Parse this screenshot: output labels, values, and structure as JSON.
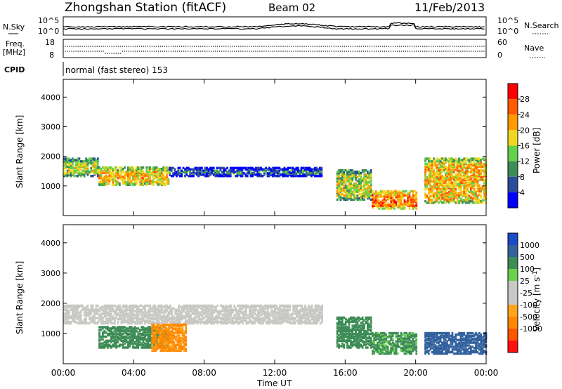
{
  "header": {
    "station": "Zhongshan Station (fitACF)",
    "beam": "Beam 02",
    "date": "11/Feb/2013"
  },
  "noise_panel": {
    "left_label": "N.Sky",
    "right_label": "N.Search",
    "left_ticks": [
      "10^5",
      "10^0"
    ],
    "right_ticks": [
      "10^5",
      "10^0"
    ]
  },
  "freq_panel": {
    "left_label_1": "Freq.",
    "left_label_2": "[MHz]",
    "left_ticks": [
      "18",
      "8"
    ],
    "right_label": "Nave",
    "right_ticks": [
      "60",
      "0"
    ],
    "freq_range": [
      8,
      18
    ],
    "nave_range": [
      0,
      60
    ]
  },
  "cpid_panel": {
    "label": "CPID",
    "text": "normal (fast stereo) 153"
  },
  "colors": {
    "power": [
      "#0000ff",
      "#2b4b9b",
      "#3e8c56",
      "#64d14c",
      "#f0d820",
      "#ff9a00",
      "#ff5a00",
      "#ff0000"
    ],
    "velocity_pos": [
      "#1a4bc8",
      "#33629e",
      "#3e8c56",
      "#6ad24e"
    ],
    "velocity_neutral": "#c8c8c4",
    "velocity_neg": [
      "#ffa51d",
      "#ff8800",
      "#ff5500",
      "#ff1010"
    ]
  },
  "chart_data": [
    {
      "type": "heatmap",
      "title": "",
      "xlabel": "",
      "ylabel": "Slant Range [km]",
      "xlim": [
        "00:00",
        "00:00"
      ],
      "ylim": [
        0,
        4600
      ],
      "yticks": [
        "1000",
        "2000",
        "3000",
        "4000"
      ],
      "colorbar": {
        "label": "Power [dB]",
        "ticks": [
          "4",
          "8",
          "12",
          "16",
          "20",
          "24",
          "28"
        ],
        "range": [
          0,
          32
        ]
      },
      "summary_bands": [
        {
          "t_start": "00:00",
          "t_end": "02:00",
          "range_km": [
            1300,
            1900
          ],
          "power_db": 16
        },
        {
          "t_start": "02:00",
          "t_end": "06:00",
          "range_km": [
            1000,
            1600
          ],
          "power_db": 20
        },
        {
          "t_start": "06:00",
          "t_end": "14:40",
          "range_km": [
            1300,
            1600
          ],
          "power_db": 8
        },
        {
          "t_start": "15:30",
          "t_end": "17:30",
          "range_km": [
            500,
            1500
          ],
          "power_db": 16
        },
        {
          "t_start": "17:30",
          "t_end": "20:00",
          "range_km": [
            200,
            800
          ],
          "power_db": 24
        },
        {
          "t_start": "20:30",
          "t_end": "24:00",
          "range_km": [
            400,
            1900
          ],
          "power_db": 20
        }
      ]
    },
    {
      "type": "heatmap",
      "title": "",
      "xlabel": "Time UT",
      "ylabel": "Slant Range [km]",
      "xlim": [
        "00:00",
        "00:00"
      ],
      "ylim": [
        0,
        4600
      ],
      "yticks": [
        "1000",
        "2000",
        "3000",
        "4000"
      ],
      "xticks": [
        "00:00",
        "04:00",
        "08:00",
        "12:00",
        "16:00",
        "20:00",
        "00:00"
      ],
      "colorbar": {
        "label": "Velocity [m s-1]",
        "ticks": [
          "1000",
          "500",
          "100",
          "25",
          "-25",
          "-100",
          "-500",
          "-1000"
        ]
      },
      "summary_bands": [
        {
          "t_start": "00:00",
          "t_end": "14:40",
          "range_km": [
            1300,
            1900
          ],
          "velocity": 0
        },
        {
          "t_start": "02:00",
          "t_end": "06:00",
          "range_km": [
            500,
            1200
          ],
          "velocity": 200
        },
        {
          "t_start": "05:00",
          "t_end": "07:00",
          "range_km": [
            400,
            1300
          ],
          "velocity": -150
        },
        {
          "t_start": "15:30",
          "t_end": "17:30",
          "range_km": [
            500,
            1500
          ],
          "velocity": 300
        },
        {
          "t_start": "17:30",
          "t_end": "20:00",
          "range_km": [
            300,
            1000
          ],
          "velocity": 150
        },
        {
          "t_start": "20:30",
          "t_end": "24:00",
          "range_km": [
            300,
            1000
          ],
          "velocity": 600
        }
      ]
    }
  ]
}
